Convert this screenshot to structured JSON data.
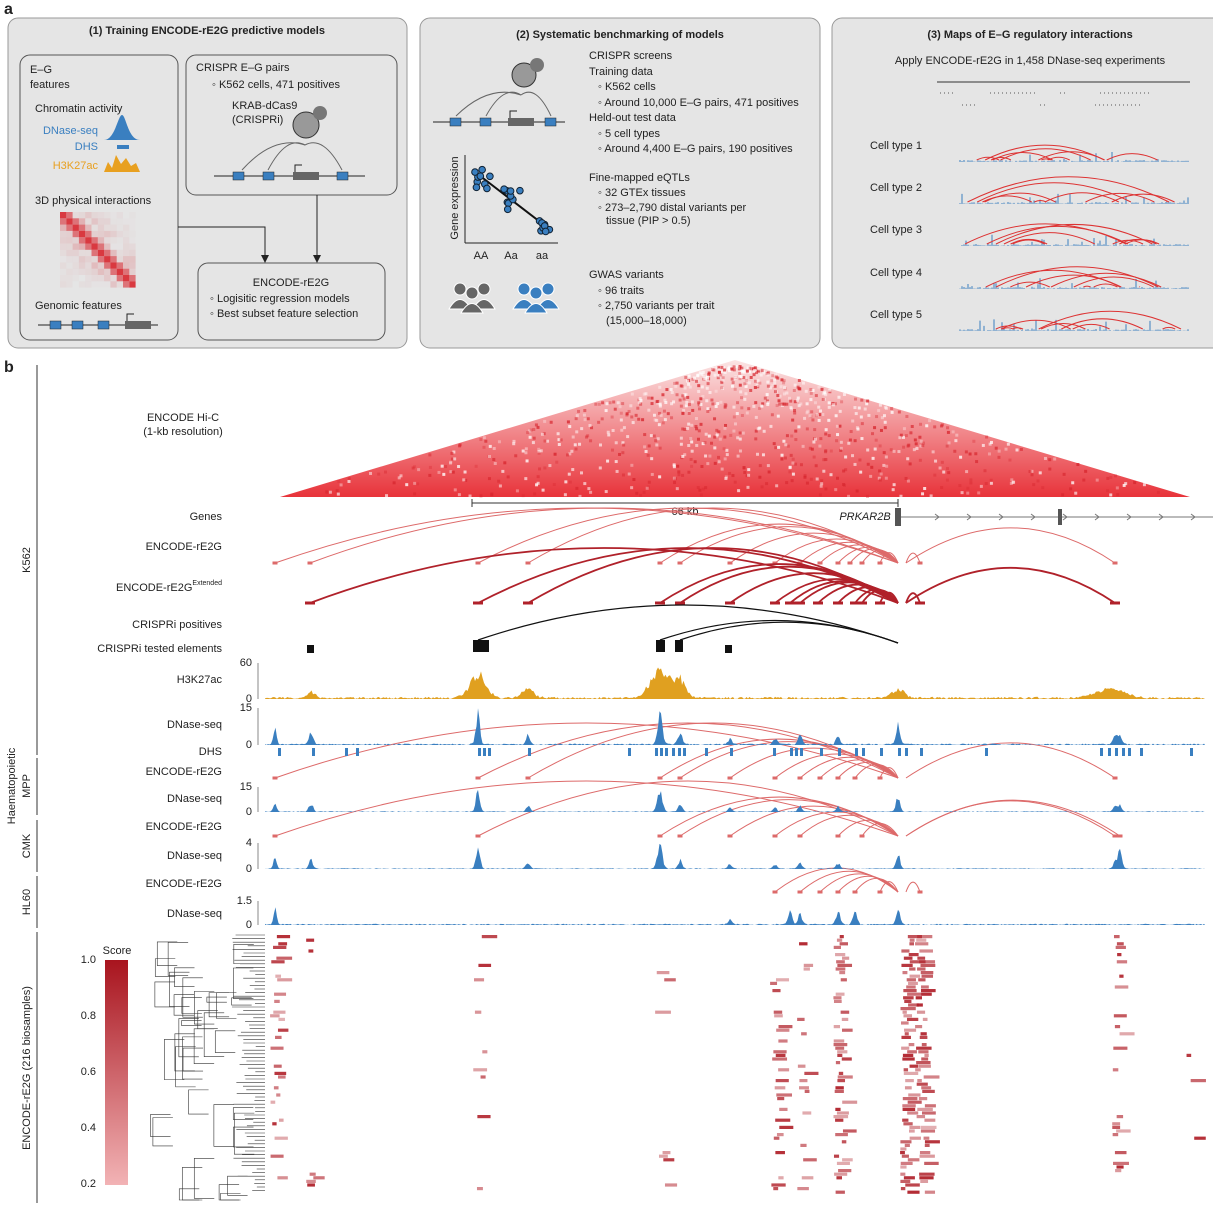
{
  "panel_a": {
    "label": "a",
    "training": {
      "title": "(1) Training ENCODE-rE2G predictive models",
      "eg_features": [
        "E–G",
        "features"
      ],
      "chromatin_activity": "Chromatin activity",
      "dnase_seq": "DNase-seq",
      "dhs": "DHS",
      "h3k27ac": "H3K27ac",
      "physical_interactions": "3D physical interactions",
      "genomic_features": "Genomic features",
      "crispr_pairs": "CRISPR E–G pairs",
      "crispr_detail": "◦ K562 cells, 471 positives",
      "krab": [
        "KRAB-dCas9",
        "(CRISPRi)"
      ],
      "model_title": "ENCODE-rE2G",
      "model_items": [
        "◦ Logisitic regression models",
        "◦ Best subset feature selection"
      ]
    },
    "benchmarking": {
      "title": "(2) Systematic benchmarking of models",
      "lines": [
        "CRISPR screens",
        "Training data",
        "◦ K562 cells",
        "◦ Around 10,000 E–G pairs, 471 positives",
        "Held-out test data",
        "◦ 5 cell types",
        "◦ Around 4,400 E–G pairs, 190 positives",
        "Fine-mapped eQTLs",
        "◦ 32 GTEx tissues",
        "◦ 273–2,790 distal variants per",
        "tissue (PIP > 0.5)",
        "GWAS variants",
        "◦ 96 traits",
        "◦ 2,750 variants per trait",
        "(15,000–18,000)"
      ],
      "y_axis": "Gene expression",
      "genotypes": [
        "AA",
        "Aa",
        "aa"
      ]
    },
    "maps": {
      "title": "(3) Maps of E–G regulatory interactions",
      "subtitle": "Apply ENCODE-rE2G in 1,458 DNase-seq experiments",
      "cell_types": [
        "Cell type 1",
        "Cell type 2",
        "Cell type 3",
        "Cell type 4",
        "Cell type 5"
      ]
    }
  },
  "panel_b": {
    "label": "b",
    "groups": {
      "k562": "K562",
      "haematopoietic": "Haematopoietic",
      "mpp": "MPP",
      "cmk": "CMK",
      "hl60": "HL60",
      "biosamples": "ENCODE-rE2G (216 biosamples)"
    },
    "hic": [
      "ENCODE Hi-C",
      "(1-kb resolution)"
    ],
    "scale": "66 kb",
    "genes": "Genes",
    "gene_name": "PRKAR2B",
    "k562": {
      "rE2G": "ENCODE-rE2G",
      "extended": [
        "ENCODE-rE2G",
        "Extended"
      ],
      "crispri_pos": "CRISPRi positives",
      "crispri_tested": "CRISPRi tested elements",
      "h3k27ac": "H3K27ac",
      "h3k27ac_ticks": [
        "60",
        "0"
      ],
      "dnase": "DNase-seq",
      "dnase_ticks": [
        "15",
        "0"
      ],
      "dhs": "DHS"
    },
    "mpp": {
      "rE2G": "ENCODE-rE2G",
      "dnase": "DNase-seq",
      "dnase_ticks": [
        "15",
        "0"
      ]
    },
    "cmk": {
      "rE2G": "ENCODE-rE2G",
      "dnase": "DNase-seq",
      "dnase_ticks": [
        "4",
        "0"
      ]
    },
    "hl60": {
      "rE2G": "ENCODE-rE2G",
      "dnase": "DNase-seq",
      "dnase_ticks": [
        "1.5",
        "0"
      ]
    },
    "score": {
      "title": "Score",
      "ticks": [
        "1.0",
        "0.8",
        "0.6",
        "0.4",
        "0.2"
      ]
    }
  }
}
